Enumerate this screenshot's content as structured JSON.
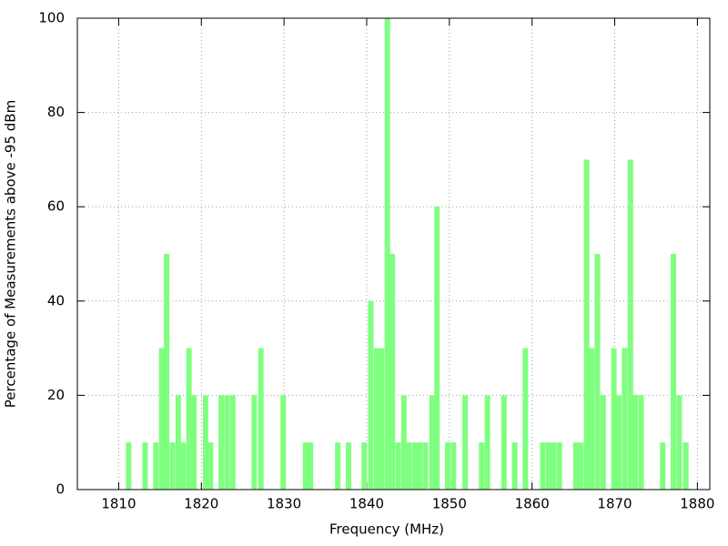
{
  "chart_data": {
    "type": "bar",
    "x_label": "Frequency (MHz)",
    "y_label": "Percentage of Measurements above -95 dBm",
    "x": [
      1811.2,
      1813.2,
      1814.5,
      1815.2,
      1815.8,
      1816.5,
      1817.2,
      1817.8,
      1818.5,
      1819.1,
      1820.5,
      1821.1,
      1822.4,
      1823.1,
      1823.8,
      1826.4,
      1827.2,
      1829.9,
      1832.6,
      1833.2,
      1836.5,
      1837.8,
      1839.7,
      1840.5,
      1841.2,
      1841.8,
      1842.5,
      1843.1,
      1843.8,
      1844.5,
      1845.1,
      1845.8,
      1846.4,
      1847.1,
      1847.9,
      1848.5,
      1849.8,
      1850.5,
      1851.9,
      1853.9,
      1854.6,
      1856.6,
      1857.9,
      1859.2,
      1861.3,
      1862.0,
      1862.6,
      1863.3,
      1865.3,
      1865.9,
      1866.6,
      1867.2,
      1867.9,
      1868.6,
      1869.9,
      1870.5,
      1871.2,
      1871.9,
      1872.5,
      1873.2,
      1875.8,
      1877.1,
      1877.8,
      1878.6
    ],
    "values": [
      10,
      10,
      10,
      30,
      50,
      10,
      20,
      10,
      30,
      20,
      20,
      10,
      20,
      20,
      20,
      20,
      30,
      20,
      10,
      10,
      10,
      10,
      10,
      40,
      30,
      30,
      100,
      50,
      10,
      20,
      10,
      10,
      10,
      10,
      20,
      60,
      10,
      10,
      20,
      10,
      20,
      20,
      10,
      30,
      10,
      10,
      10,
      10,
      10,
      10,
      70,
      30,
      50,
      20,
      30,
      20,
      30,
      70,
      20,
      20,
      10,
      50,
      20,
      10
    ],
    "color": "#7fff7f",
    "xlim": [
      1805,
      1881.5
    ],
    "xticks": [
      1810,
      1820,
      1830,
      1840,
      1850,
      1860,
      1870,
      1880
    ],
    "ylim": [
      0,
      100
    ],
    "yticks": [
      0,
      20,
      40,
      60,
      80,
      100
    ],
    "grid": true
  }
}
